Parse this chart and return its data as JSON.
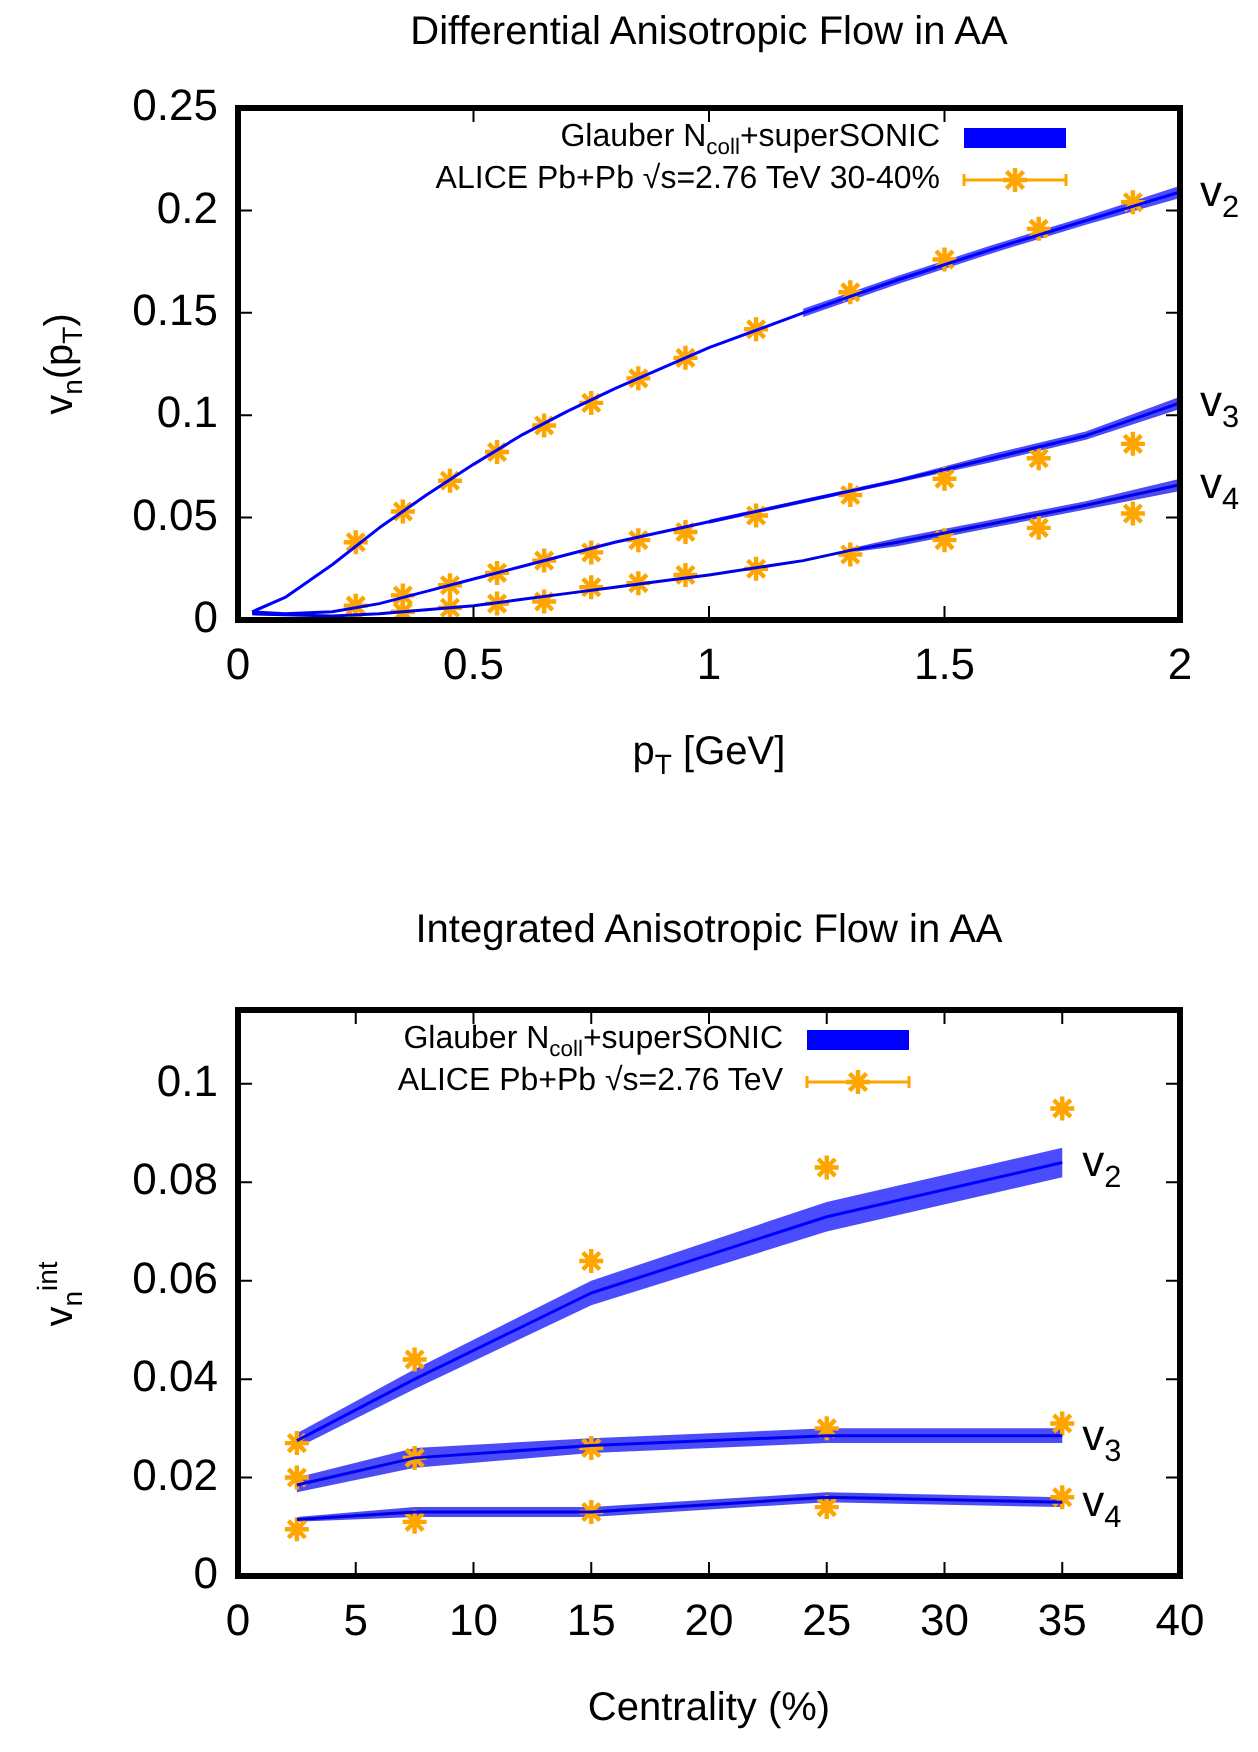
{
  "chart_data": [
    {
      "type": "line",
      "title": "Differential Anisotropic Flow in AA",
      "xlabel": "p$_{T}$ [GeV]",
      "ylabel": "v$_{n}$(p$_{T}$)",
      "xlim": [
        0,
        2
      ],
      "ylim": [
        0,
        0.25
      ],
      "xticks": [
        0,
        0.5,
        1,
        1.5,
        2
      ],
      "yticks": [
        0,
        0.05,
        0.1,
        0.15,
        0.2,
        0.25
      ],
      "grid": false,
      "legend": "top right",
      "series": [
        {
          "type": "line",
          "name": "Glauber N$_{coll}$+superSONIC",
          "color": "#0000ff",
          "x": [
            0.03,
            0.1,
            0.2,
            0.3,
            0.4,
            0.5,
            0.6,
            0.7,
            0.8,
            1.0,
            1.2,
            1.4,
            1.6,
            1.8,
            2.0
          ],
          "values": [
            0.004,
            0.011,
            0.027,
            0.045,
            0.061,
            0.076,
            0.09,
            0.102,
            0.113,
            0.133,
            0.15,
            0.166,
            0.181,
            0.195,
            0.209
          ],
          "lower": [
            null,
            null,
            null,
            null,
            null,
            null,
            null,
            null,
            null,
            null,
            0.148,
            0.164,
            0.179,
            0.193,
            0.206
          ],
          "upper": [
            null,
            null,
            null,
            null,
            null,
            null,
            null,
            null,
            null,
            null,
            0.152,
            0.168,
            0.183,
            0.197,
            0.212
          ]
        },
        {
          "type": "line",
          "color": "#0000f4",
          "x": [
            0.03,
            0.1,
            0.2,
            0.3,
            0.4,
            0.5,
            0.6,
            0.7,
            0.8,
            0.9,
            1.0,
            1.2,
            1.4,
            1.6,
            1.8,
            2.0
          ],
          "values": [
            0.004,
            0.003,
            0.004,
            0.008,
            0.014,
            0.02,
            0.026,
            0.032,
            0.038,
            0.043,
            0.048,
            0.058,
            0.068,
            0.079,
            0.09,
            0.106
          ],
          "lower": [
            null,
            null,
            null,
            null,
            null,
            null,
            null,
            null,
            null,
            null,
            0.047,
            0.057,
            0.067,
            0.077,
            0.088,
            0.103
          ],
          "upper": [
            null,
            null,
            null,
            null,
            null,
            null,
            null,
            null,
            null,
            null,
            0.049,
            0.059,
            0.069,
            0.081,
            0.092,
            0.109
          ]
        },
        {
          "type": "line",
          "color": "#0000e8",
          "x": [
            0.03,
            0.2,
            0.3,
            0.4,
            0.5,
            0.6,
            0.7,
            0.8,
            0.9,
            1.0,
            1.2,
            1.3,
            1.4,
            1.6,
            1.8,
            2.0
          ],
          "values": [
            0.003,
            0.002,
            0.003,
            0.005,
            0.007,
            0.01,
            0.013,
            0.016,
            0.019,
            0.022,
            0.029,
            0.034,
            0.038,
            0.047,
            0.056,
            0.066
          ],
          "lower": [
            null,
            null,
            null,
            null,
            null,
            null,
            null,
            null,
            null,
            null,
            null,
            0.033,
            0.036,
            0.045,
            0.054,
            0.063
          ],
          "upper": [
            null,
            null,
            null,
            null,
            null,
            null,
            null,
            null,
            null,
            null,
            null,
            0.035,
            0.04,
            0.049,
            0.058,
            0.069
          ]
        },
        {
          "type": "scatter",
          "name": "ALICE Pb+Pb √s=2.76 TeV 30-40%",
          "color": "#ffa500",
          "marker": "cross",
          "x": [
            0.25,
            0.35,
            0.45,
            0.55,
            0.65,
            0.75,
            0.85,
            0.95,
            1.1,
            1.3,
            1.5,
            1.7,
            1.9
          ],
          "values": [
            0.038,
            0.053,
            0.068,
            0.082,
            0.095,
            0.106,
            0.118,
            0.128,
            0.142,
            0.16,
            0.176,
            0.191,
            0.204
          ]
        },
        {
          "type": "scatter",
          "color": "#ffa500",
          "marker": "cross",
          "x": [
            0.25,
            0.35,
            0.45,
            0.55,
            0.65,
            0.75,
            0.85,
            0.95,
            1.1,
            1.3,
            1.5,
            1.7,
            1.9
          ],
          "values": [
            0.007,
            0.012,
            0.017,
            0.023,
            0.029,
            0.033,
            0.039,
            0.043,
            0.051,
            0.061,
            0.069,
            0.079,
            0.086
          ]
        },
        {
          "type": "scatter",
          "color": "#ffa500",
          "marker": "cross",
          "x": [
            0.25,
            0.35,
            0.45,
            0.55,
            0.65,
            0.75,
            0.85,
            0.95,
            1.1,
            1.3,
            1.5,
            1.7,
            1.9
          ],
          "values": [
            0.0,
            0.004,
            0.006,
            0.008,
            0.009,
            0.016,
            0.018,
            0.022,
            0.025,
            0.032,
            0.039,
            0.045,
            0.052
          ]
        }
      ],
      "annotations": [
        "v$_{2}$",
        "v$_{3}$",
        "v$_{4}$"
      ]
    },
    {
      "type": "line",
      "title": "Integrated Anisotropic Flow in AA",
      "xlabel": "Centrality (%)",
      "ylabel": "v$_{n}$$^{int}$",
      "xlim": [
        0,
        40
      ],
      "ylim": [
        0,
        0.115
      ],
      "xticks": [
        0,
        5,
        10,
        15,
        20,
        25,
        30,
        35,
        40
      ],
      "yticks": [
        0,
        0.02,
        0.04,
        0.06,
        0.08,
        0.1
      ],
      "grid": false,
      "legend": "top",
      "series": [
        {
          "type": "line",
          "name": "Glauber N$_{coll}$+superSONIC",
          "color": "#0000ff",
          "x": [
            2.5,
            7.5,
            15,
            25,
            35
          ],
          "values": [
            0.0275,
            0.04,
            0.0575,
            0.073,
            0.084
          ],
          "lower": [
            0.026,
            0.038,
            0.055,
            0.07,
            0.081
          ],
          "upper": [
            0.029,
            0.042,
            0.06,
            0.076,
            0.087
          ]
        },
        {
          "type": "line",
          "color": "#0000f4",
          "x": [
            2.5,
            7.5,
            15,
            25,
            35
          ],
          "values": [
            0.0185,
            0.024,
            0.0265,
            0.0285,
            0.0285
          ],
          "lower": [
            0.017,
            0.022,
            0.025,
            0.027,
            0.027
          ],
          "upper": [
            0.02,
            0.026,
            0.028,
            0.03,
            0.03
          ]
        },
        {
          "type": "line",
          "color": "#0000e8",
          "x": [
            2.5,
            7.5,
            15,
            25,
            35
          ],
          "values": [
            0.0115,
            0.013,
            0.013,
            0.016,
            0.015
          ],
          "lower": [
            0.011,
            0.012,
            0.012,
            0.015,
            0.014
          ],
          "upper": [
            0.012,
            0.014,
            0.014,
            0.017,
            0.016
          ]
        },
        {
          "type": "scatter",
          "name": "ALICE Pb+Pb √s=2.76 TeV",
          "color": "#ffa500",
          "marker": "cross",
          "x": [
            2.5,
            7.5,
            15,
            25,
            35
          ],
          "values": [
            0.027,
            0.044,
            0.064,
            0.083,
            0.095
          ]
        },
        {
          "type": "scatter",
          "color": "#ffa500",
          "marker": "cross",
          "x": [
            2.5,
            7.5,
            15,
            25,
            35
          ],
          "values": [
            0.02,
            0.024,
            0.026,
            0.03,
            0.031
          ]
        },
        {
          "type": "scatter",
          "color": "#ffa500",
          "marker": "cross",
          "x": [
            2.5,
            7.5,
            15,
            25,
            35
          ],
          "values": [
            0.0095,
            0.011,
            0.013,
            0.014,
            0.016
          ]
        }
      ],
      "annotations": [
        "v$_{2}$",
        "v$_{3}$",
        "v$_{4}$"
      ]
    }
  ]
}
